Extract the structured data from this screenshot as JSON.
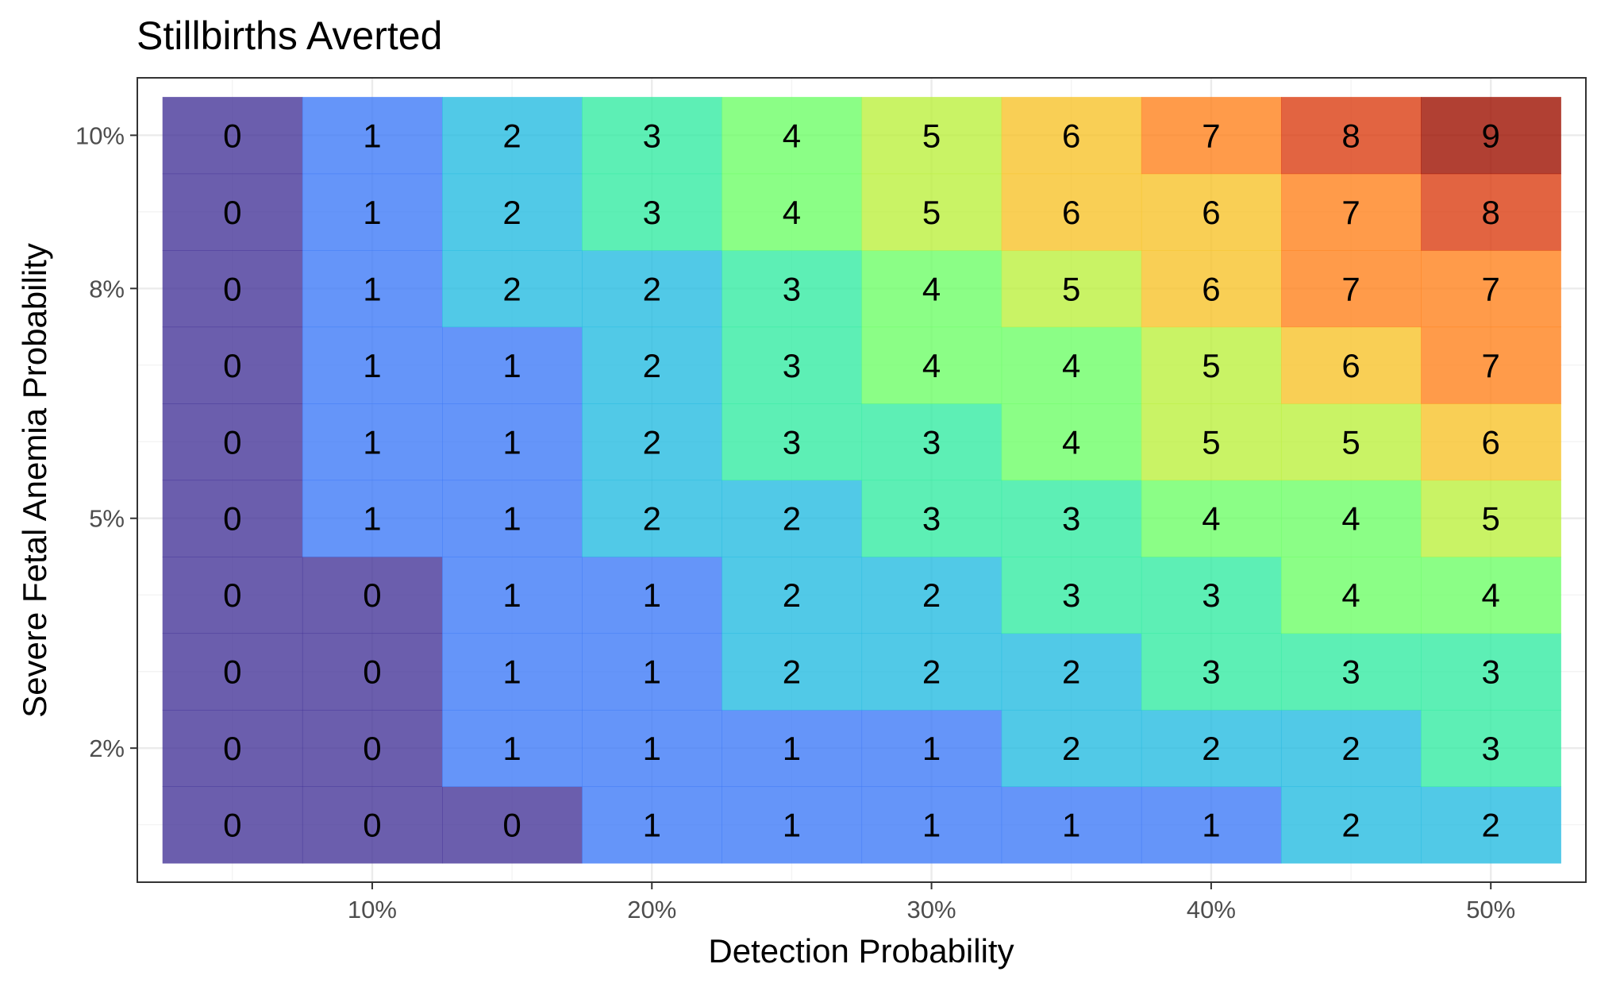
{
  "chart_data": {
    "type": "heatmap",
    "title": "Stillbirths Averted",
    "xlabel": "Detection Probability",
    "ylabel": "Severe Fetal Anemia Probability",
    "x": [
      5,
      10,
      15,
      20,
      25,
      30,
      35,
      40,
      45,
      50
    ],
    "y": [
      1,
      2,
      3,
      4,
      5,
      6,
      7,
      8,
      9,
      10
    ],
    "xlim": [
      1.6,
      53.4
    ],
    "ylim": [
      0.25,
      10.75
    ],
    "x_ticks": [
      10,
      20,
      30,
      40,
      50
    ],
    "x_tick_labels": [
      "10%",
      "20%",
      "30%",
      "40%",
      "50%"
    ],
    "y_ticks": [
      2,
      5,
      8,
      10
    ],
    "y_tick_labels": [
      "2%",
      "5%",
      "8%",
      "10%"
    ],
    "grid": true,
    "legend": "none",
    "color_scale": "turbo",
    "value_range": [
      0,
      9
    ],
    "values": [
      [
        0,
        0,
        0,
        1,
        1,
        1,
        1,
        1,
        2,
        2
      ],
      [
        0,
        0,
        1,
        1,
        1,
        1,
        2,
        2,
        2,
        3
      ],
      [
        0,
        0,
        1,
        1,
        2,
        2,
        2,
        3,
        3,
        3
      ],
      [
        0,
        0,
        1,
        1,
        2,
        2,
        3,
        3,
        4,
        4
      ],
      [
        0,
        1,
        1,
        2,
        2,
        3,
        3,
        4,
        4,
        5
      ],
      [
        0,
        1,
        1,
        2,
        3,
        3,
        4,
        5,
        5,
        6
      ],
      [
        0,
        1,
        1,
        2,
        3,
        4,
        4,
        5,
        6,
        7
      ],
      [
        0,
        1,
        2,
        2,
        3,
        4,
        5,
        6,
        7,
        7
      ],
      [
        0,
        1,
        2,
        3,
        4,
        5,
        6,
        6,
        7,
        8
      ],
      [
        0,
        1,
        2,
        3,
        4,
        5,
        6,
        7,
        8,
        9
      ]
    ]
  }
}
